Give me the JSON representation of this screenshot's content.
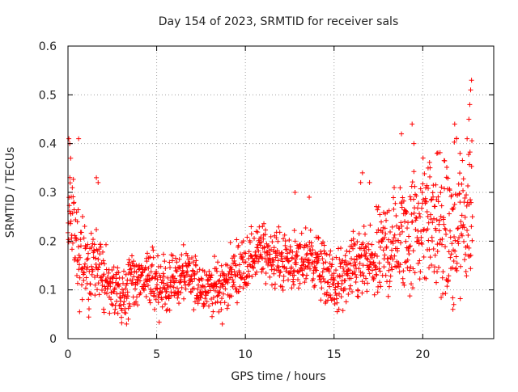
{
  "chart_data": {
    "type": "scatter",
    "title": "Day 154 of 2023, SRMTID for receiver sals",
    "xlabel": "GPS time / hours",
    "ylabel": "SRMTID / TECUs",
    "xlim": [
      0,
      24
    ],
    "ylim": [
      0,
      0.6
    ],
    "xticks": [
      0,
      5,
      10,
      15,
      20
    ],
    "xtick_labels": [
      "0",
      "5",
      "10",
      "15",
      "20"
    ],
    "yticks": [
      0,
      0.1,
      0.2,
      0.3,
      0.4,
      0.5,
      0.6
    ],
    "ytick_labels": [
      "0",
      "0.1",
      "0.2",
      "0.3",
      "0.4",
      "0.5",
      "0.6"
    ],
    "grid": true,
    "marker": "+",
    "series": [
      {
        "name": "SRMTID",
        "color": "#ff0000",
        "profile": [
          [
            0.0,
            0.25
          ],
          [
            0.3,
            0.24
          ],
          [
            0.6,
            0.16
          ],
          [
            1.0,
            0.14
          ],
          [
            1.5,
            0.17
          ],
          [
            2.0,
            0.12
          ],
          [
            2.5,
            0.1
          ],
          [
            3.0,
            0.09
          ],
          [
            3.5,
            0.11
          ],
          [
            4.0,
            0.12
          ],
          [
            4.5,
            0.13
          ],
          [
            5.0,
            0.1
          ],
          [
            5.5,
            0.11
          ],
          [
            6.0,
            0.12
          ],
          [
            6.5,
            0.13
          ],
          [
            7.0,
            0.12
          ],
          [
            7.5,
            0.11
          ],
          [
            8.0,
            0.11
          ],
          [
            8.5,
            0.1
          ],
          [
            9.0,
            0.12
          ],
          [
            9.5,
            0.14
          ],
          [
            10.0,
            0.15
          ],
          [
            10.5,
            0.17
          ],
          [
            11.0,
            0.18
          ],
          [
            11.5,
            0.17
          ],
          [
            12.0,
            0.16
          ],
          [
            12.5,
            0.16
          ],
          [
            13.0,
            0.15
          ],
          [
            13.5,
            0.17
          ],
          [
            14.0,
            0.16
          ],
          [
            14.5,
            0.13
          ],
          [
            15.0,
            0.11
          ],
          [
            15.5,
            0.12
          ],
          [
            16.0,
            0.14
          ],
          [
            16.5,
            0.15
          ],
          [
            17.0,
            0.15
          ],
          [
            17.5,
            0.16
          ],
          [
            18.0,
            0.19
          ],
          [
            18.5,
            0.2
          ],
          [
            19.0,
            0.21
          ],
          [
            19.5,
            0.23
          ],
          [
            20.0,
            0.25
          ],
          [
            20.5,
            0.24
          ],
          [
            21.0,
            0.22
          ],
          [
            21.5,
            0.21
          ],
          [
            22.0,
            0.22
          ],
          [
            22.5,
            0.25
          ],
          [
            22.8,
            0.28
          ]
        ],
        "spread": [
          [
            0.0,
            0.14
          ],
          [
            2.0,
            0.08
          ],
          [
            8.0,
            0.07
          ],
          [
            14.0,
            0.08
          ],
          [
            16.0,
            0.09
          ],
          [
            18.0,
            0.14
          ],
          [
            20.0,
            0.18
          ],
          [
            22.8,
            0.22
          ]
        ],
        "n_points": 1500,
        "highlights": [
          [
            0.05,
            0.41
          ],
          [
            0.1,
            0.4
          ],
          [
            0.15,
            0.37
          ],
          [
            0.6,
            0.41
          ],
          [
            1.6,
            0.33
          ],
          [
            1.7,
            0.32
          ],
          [
            13.6,
            0.29
          ],
          [
            16.5,
            0.32
          ],
          [
            18.8,
            0.42
          ],
          [
            19.4,
            0.44
          ],
          [
            19.5,
            0.4
          ],
          [
            20.3,
            0.35
          ],
          [
            21.8,
            0.44
          ],
          [
            21.9,
            0.41
          ],
          [
            22.1,
            0.38
          ],
          [
            22.5,
            0.41
          ],
          [
            22.6,
            0.45
          ],
          [
            22.65,
            0.48
          ],
          [
            22.7,
            0.51
          ],
          [
            22.75,
            0.53
          ],
          [
            21.7,
            0.06
          ],
          [
            21.75,
            0.07
          ],
          [
            8.7,
            0.03
          ],
          [
            3.4,
            0.04
          ],
          [
            12.8,
            0.3
          ],
          [
            16.6,
            0.34
          ],
          [
            17.0,
            0.32
          ],
          [
            20.8,
            0.38
          ]
        ]
      }
    ]
  }
}
